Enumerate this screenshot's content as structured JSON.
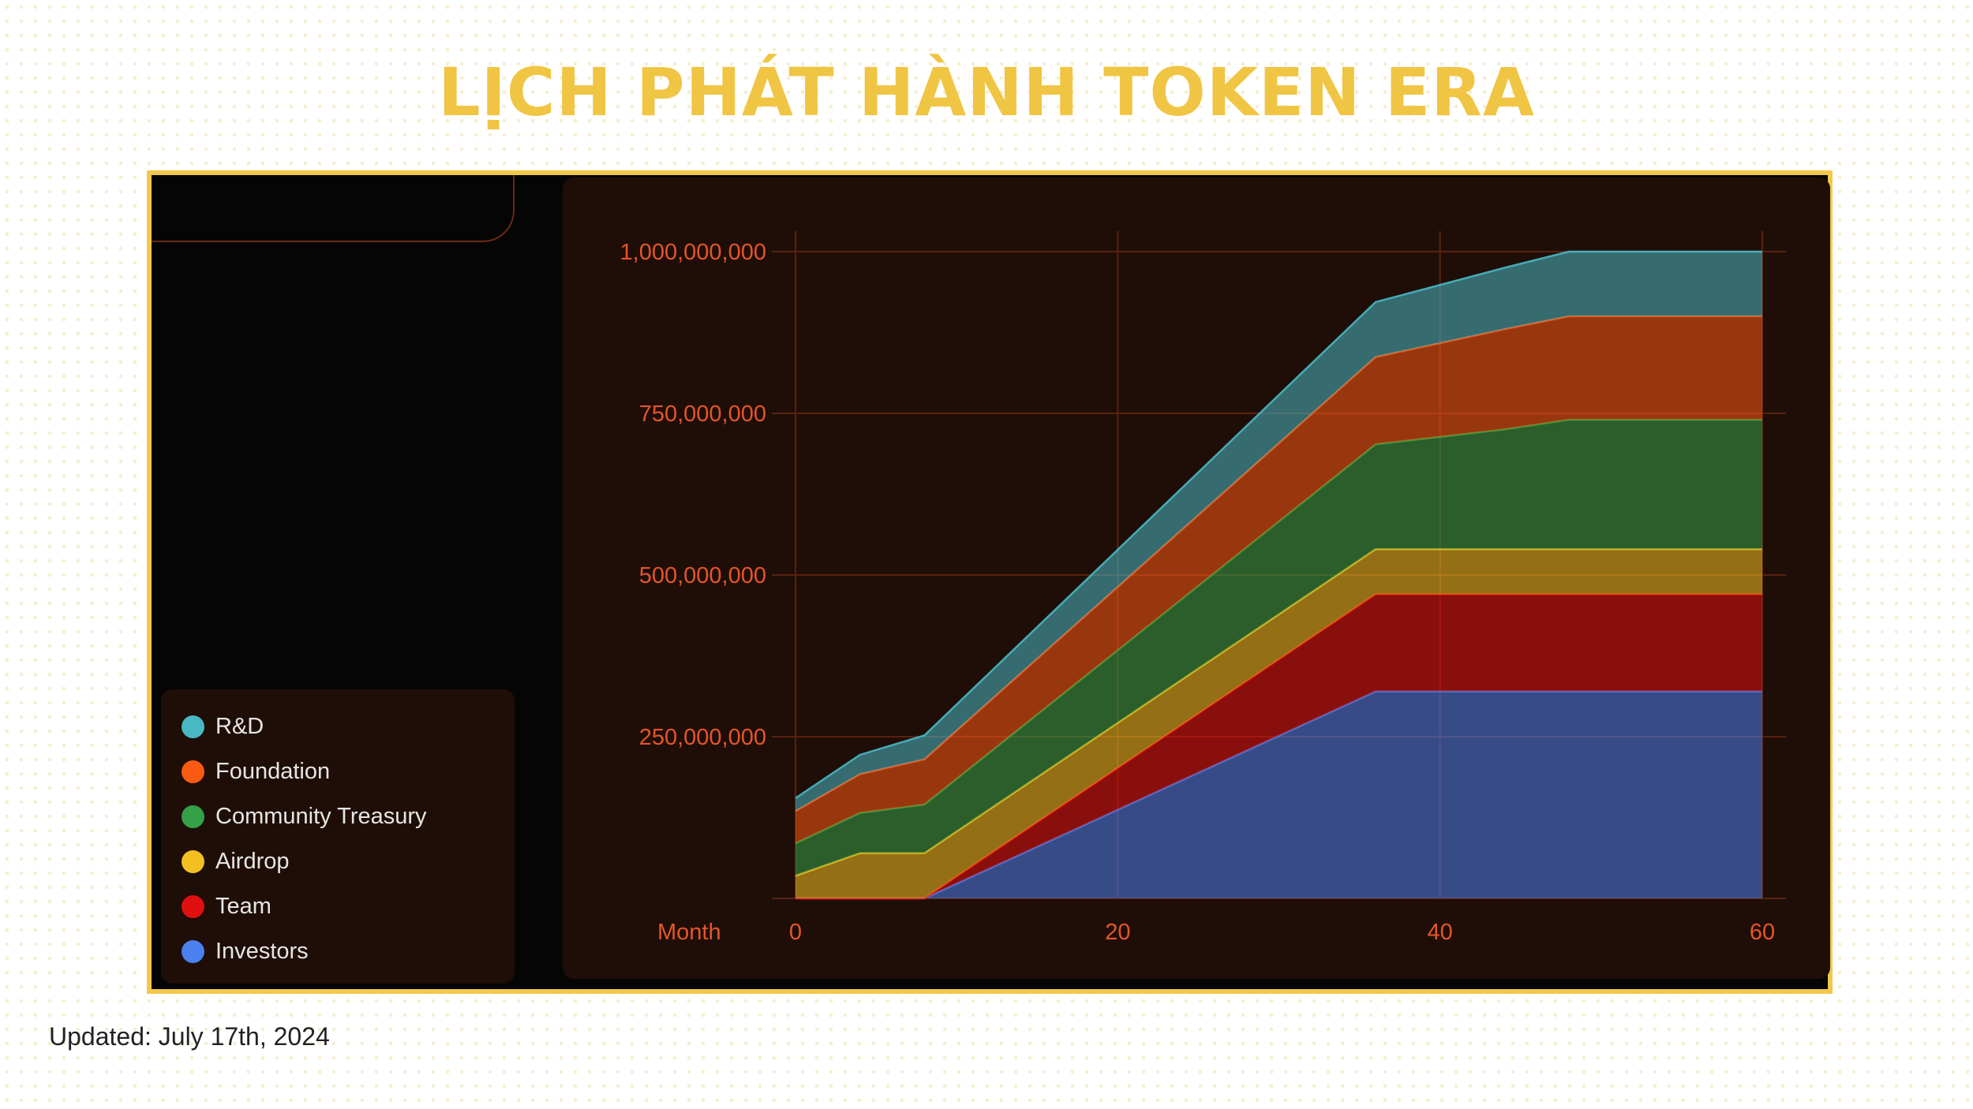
{
  "page": {
    "title": "LỊCH PHÁT HÀNH TOKEN ERA",
    "updated": "Updated: July 17th, 2024"
  },
  "colors": {
    "title": "#f0c543",
    "frame_border": "#f2c84b",
    "panel_bg": "#1f0e07",
    "axis_text": "#e5552a",
    "grid": "#5a2210"
  },
  "chart_data": {
    "type": "area",
    "stacked": true,
    "xlabel": "Month",
    "ylabel": "",
    "xlim": [
      0,
      60
    ],
    "ylim": [
      0,
      1000000000
    ],
    "x_ticks": [
      0,
      20,
      40,
      60
    ],
    "x_tick_labels": [
      "0",
      "20",
      "40",
      "60"
    ],
    "y_ticks": [
      250000000,
      500000000,
      750000000,
      1000000000
    ],
    "y_tick_labels": [
      "250,000,000",
      "500,000,000",
      "750,000,000",
      "1,000,000,000"
    ],
    "grid": true,
    "legend_position": "left",
    "x": [
      0,
      4,
      8,
      36,
      44,
      48,
      60
    ],
    "series": [
      {
        "name": "Investors",
        "color": "#4a80f0",
        "values": [
          0,
          0,
          0,
          320000000,
          320000000,
          320000000,
          320000000
        ]
      },
      {
        "name": "Team",
        "color": "#e01010",
        "values": [
          0,
          0,
          0,
          150000000,
          150000000,
          150000000,
          150000000
        ]
      },
      {
        "name": "Airdrop",
        "color": "#f4c021",
        "values": [
          35000000,
          70000000,
          70000000,
          70000000,
          70000000,
          70000000,
          70000000
        ]
      },
      {
        "name": "Community Treasury",
        "color": "#34a047",
        "values": [
          50000000,
          62000000,
          75000000,
          162000000,
          185000000,
          200000000,
          200000000
        ]
      },
      {
        "name": "Foundation",
        "color": "#fb5a14",
        "values": [
          50000000,
          60000000,
          70000000,
          135000000,
          155000000,
          160000000,
          160000000
        ]
      },
      {
        "name": "R&D",
        "color": "#48b8c5",
        "values": [
          20000000,
          30000000,
          37000000,
          85000000,
          95000000,
          100000000,
          100000000
        ]
      }
    ]
  }
}
